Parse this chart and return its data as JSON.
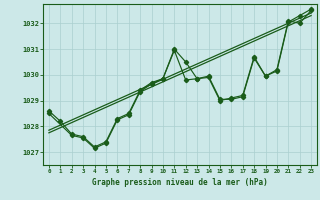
{
  "bg_color": "#cce8e8",
  "plot_bg_color": "#cce8e8",
  "grid_color": "#aacfcf",
  "line_color": "#1a5c1a",
  "marker_color": "#1a5c1a",
  "xlabel": "Graphe pression niveau de la mer (hPa)",
  "hours": [
    0,
    1,
    2,
    3,
    4,
    5,
    6,
    7,
    8,
    9,
    10,
    11,
    12,
    13,
    14,
    15,
    16,
    17,
    18,
    19,
    20,
    21,
    22,
    23
  ],
  "series1": [
    1028.6,
    1028.2,
    1027.7,
    1027.6,
    1027.2,
    1027.4,
    1028.3,
    1028.5,
    1029.4,
    1029.7,
    1029.85,
    1031.0,
    1030.5,
    1029.85,
    1029.9,
    1029.0,
    1029.1,
    1029.2,
    1030.7,
    1029.95,
    1030.2,
    1032.1,
    1032.0,
    1032.5
  ],
  "series2": [
    1028.5,
    null,
    1027.65,
    1027.55,
    1027.15,
    1027.35,
    1028.25,
    1028.45,
    1029.35,
    1029.65,
    1029.85,
    1030.95,
    1029.8,
    1029.85,
    1029.95,
    1029.05,
    1029.05,
    1029.15,
    1030.65,
    1029.95,
    1030.15,
    1032.05,
    1032.3,
    1032.55
  ],
  "trend_x": [
    0,
    23
  ],
  "trend1_y": [
    1027.85,
    1032.4
  ],
  "trend2_y": [
    1027.75,
    1032.3
  ],
  "ylim": [
    1026.5,
    1032.75
  ],
  "xlim": [
    -0.5,
    23.5
  ],
  "yticks": [
    1027,
    1028,
    1029,
    1030,
    1031,
    1032
  ]
}
